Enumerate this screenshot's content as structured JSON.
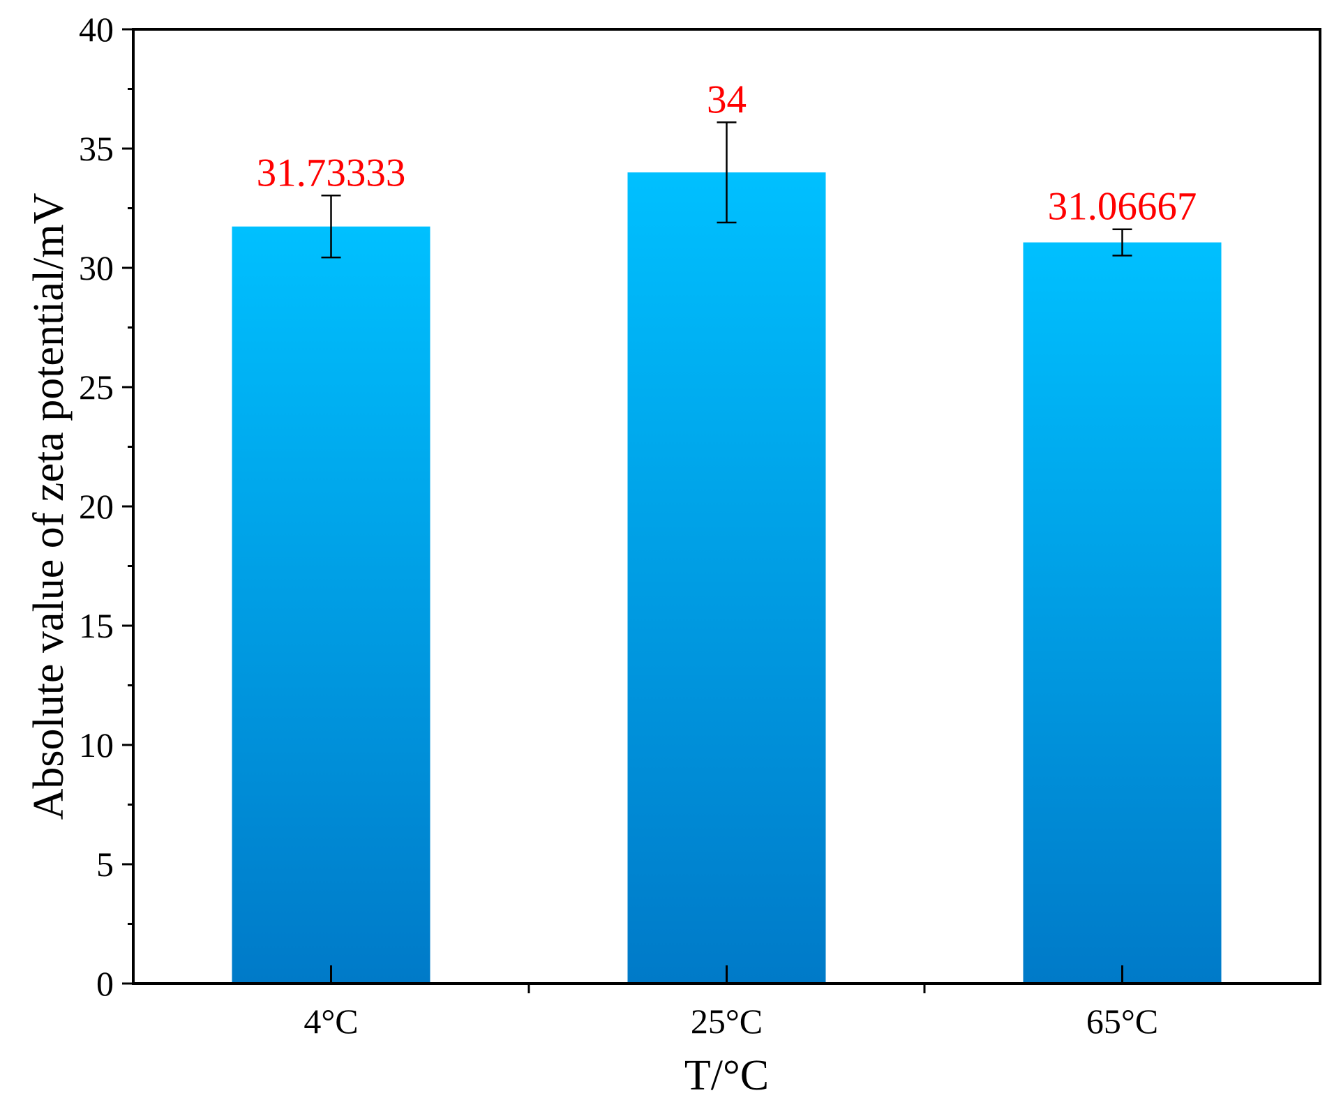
{
  "chart_data": {
    "type": "bar",
    "categories": [
      "4°C",
      "25°C",
      "65°C"
    ],
    "values": [
      31.73333,
      34,
      31.06667
    ],
    "value_labels": [
      "31.73333",
      "34",
      "31.06667"
    ],
    "error_bars": [
      1.3,
      2.1,
      0.55
    ],
    "xlabel": "T/°C",
    "ylabel": "Absolute value of zeta potential/mV",
    "ylim": [
      0,
      40
    ],
    "yticks": [
      "0",
      "5",
      "10",
      "15",
      "20",
      "25",
      "30",
      "35",
      "40"
    ],
    "ytick_values": [
      0,
      5,
      10,
      15,
      20,
      25,
      30,
      35,
      40
    ],
    "grid": false,
    "legend": "none",
    "bar_color_top": "#00c0ff",
    "bar_color_bottom": "#007ac8",
    "label_color": "#ff0000",
    "axis_color": "#000000"
  }
}
